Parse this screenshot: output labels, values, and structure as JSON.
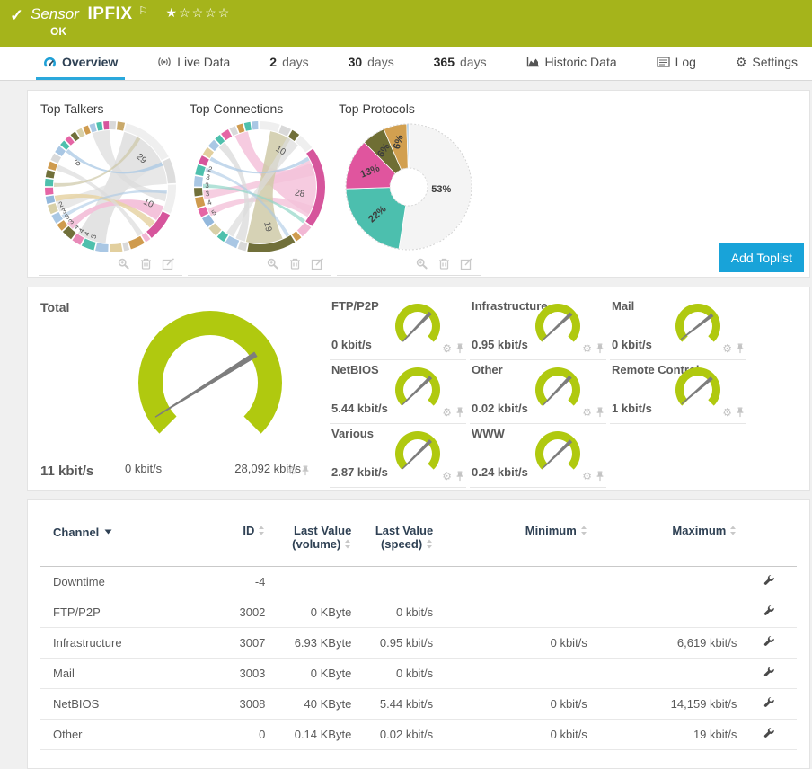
{
  "header": {
    "kind_label": "Sensor",
    "name": "IPFIX",
    "status": "OK",
    "rating_filled": 1,
    "rating_total": 5
  },
  "tabs": [
    {
      "name": "overview",
      "icon": "gauge-icon",
      "label": "Overview",
      "active": true
    },
    {
      "name": "live-data",
      "icon": "live-icon",
      "label": "Live Data"
    },
    {
      "name": "2-days",
      "bold": "2",
      "label": "days"
    },
    {
      "name": "30-days",
      "bold": "30",
      "label": "days"
    },
    {
      "name": "365-days",
      "bold": "365",
      "label": "days"
    },
    {
      "name": "historic-data",
      "icon": "chart-icon",
      "label": "Historic Data"
    },
    {
      "name": "log",
      "icon": "log-icon",
      "label": "Log"
    },
    {
      "name": "settings",
      "icon": "gear-icon",
      "label": "Settings"
    }
  ],
  "toplists": {
    "add_label": "Add Toplist"
  },
  "chart_data": [
    {
      "type": "chord",
      "title": "Top Talkers",
      "visible_values": [
        29,
        10,
        6,
        5,
        4,
        4,
        4,
        3,
        3,
        3,
        2
      ],
      "segments": [
        [
          "#d9d9d9",
          3
        ],
        [
          "#c9a96a",
          4
        ],
        [
          "#efefef",
          30
        ],
        [
          "#dddddd",
          14
        ],
        [
          "#efefef",
          16
        ],
        [
          "#d6559c",
          16
        ],
        [
          "#f2b8d4",
          3
        ],
        [
          "#cf9b4e",
          8
        ],
        [
          "#d9d9d9",
          3
        ],
        [
          "#e2cf9e",
          7
        ],
        [
          "#a9c7e4",
          7
        ],
        [
          "#4ec0ad",
          7
        ],
        [
          "#e88ab8",
          5
        ],
        [
          "#71703a",
          6
        ],
        [
          "#cf9b4e",
          4
        ],
        [
          "#a9c7e4",
          5
        ],
        [
          "#d8d0a8",
          5
        ],
        [
          "#93b8dc",
          4
        ],
        [
          "#e565a5",
          4
        ],
        [
          "#4ec0ad",
          4
        ],
        [
          "#71703a",
          4
        ],
        [
          "#cf9b4e",
          4
        ],
        [
          "#d9d9d9",
          4
        ],
        [
          "#a9c7e4",
          4
        ],
        [
          "#4ec0ad",
          3
        ],
        [
          "#e565a5",
          3
        ],
        [
          "#71703a",
          3
        ],
        [
          "#d8d0a8",
          3
        ],
        [
          "#cf9b4e",
          3
        ],
        [
          "#a9c7e4",
          3
        ],
        [
          "#4ec0ad",
          3
        ],
        [
          "#d6559c",
          3
        ]
      ],
      "ribbons": [
        [
          40,
          26,
          200,
          15,
          "#dcdcdc",
          0.8
        ],
        [
          75,
          12,
          250,
          6,
          "#e2e2e2",
          0.8
        ],
        [
          100,
          5,
          350,
          9,
          "#dcdcdc",
          0.7
        ],
        [
          118,
          8,
          226,
          4,
          "#f3bcd7",
          0.9
        ],
        [
          132,
          4,
          258,
          3,
          "#e6d4a4",
          0.85
        ],
        [
          148,
          3,
          290,
          3,
          "#dcdcdc",
          0.7
        ],
        [
          310,
          2,
          66,
          2,
          "#aac8e4",
          0.75
        ],
        [
          272,
          2,
          30,
          2,
          "#cdc8a6",
          0.7
        ],
        [
          238,
          2,
          95,
          2,
          "#aac8e4",
          0.6
        ]
      ],
      "labels": [
        [
          "6",
          305,
          0.58,
          -40,
          10
        ],
        [
          "29",
          48,
          0.6,
          42,
          10
        ],
        [
          "10",
          117,
          0.63,
          25,
          10
        ],
        [
          "5",
          196,
          0.8,
          -74,
          8
        ],
        [
          "4",
          204,
          0.8,
          -66,
          8
        ],
        [
          "4",
          211,
          0.8,
          -59,
          8
        ],
        [
          "4",
          218,
          0.8,
          -52,
          8
        ],
        [
          "3",
          226,
          0.8,
          -44,
          8
        ],
        [
          "3",
          233,
          0.8,
          -37,
          8
        ],
        [
          "3",
          240,
          0.8,
          -30,
          8
        ],
        [
          "2",
          248,
          0.8,
          -22,
          8
        ]
      ]
    },
    {
      "type": "chord",
      "title": "Top Connections",
      "visible_values": [
        28,
        19,
        10,
        5,
        4,
        3,
        3,
        3,
        2
      ],
      "segments": [
        [
          "#efefef",
          10
        ],
        [
          "#d9d9d9",
          5
        ],
        [
          "#71703a",
          4
        ],
        [
          "#efefef",
          8
        ],
        [
          "#d6559c",
          40
        ],
        [
          "#f2b8d4",
          6
        ],
        [
          "#cf9b4e",
          3
        ],
        [
          "#71703a",
          24
        ],
        [
          "#d9d9d9",
          4
        ],
        [
          "#a9c7e4",
          6
        ],
        [
          "#4ec0ad",
          4
        ],
        [
          "#d8d0a8",
          5
        ],
        [
          "#93b8dc",
          5
        ],
        [
          "#e565a5",
          4
        ],
        [
          "#cf9b4e",
          5
        ],
        [
          "#71703a",
          4
        ],
        [
          "#a9c7e4",
          5
        ],
        [
          "#4ec0ad",
          5
        ],
        [
          "#d6559c",
          4
        ],
        [
          "#e2cf9e",
          4
        ],
        [
          "#a9c7e4",
          4
        ],
        [
          "#4ec0ad",
          3
        ],
        [
          "#e565a5",
          4
        ],
        [
          "#d9d9d9",
          3
        ],
        [
          "#cf9b4e",
          3
        ],
        [
          "#4ec0ad",
          3
        ],
        [
          "#a9c7e4",
          3
        ]
      ],
      "ribbons": [
        [
          92,
          27,
          341,
          7,
          "#f4c2da",
          0.85
        ],
        [
          70,
          8,
          262,
          5,
          "#f4c2da",
          0.8
        ],
        [
          116,
          6,
          243,
          4,
          "#f4c2da",
          0.8
        ],
        [
          175,
          19,
          22,
          11,
          "#cfcaa8",
          0.85
        ],
        [
          200,
          5,
          318,
          4,
          "#dcdcdc",
          0.8
        ],
        [
          36,
          7,
          212,
          4,
          "#dcdcdc",
          0.7
        ],
        [
          300,
          2,
          60,
          2,
          "#aac8e4",
          0.7
        ],
        [
          271,
          2,
          128,
          2,
          "#92d6c8",
          0.7
        ],
        [
          288,
          2,
          150,
          2,
          "#aac8e4",
          0.6
        ]
      ],
      "labels": [
        [
          "10",
          30,
          0.6,
          30,
          10
        ],
        [
          "28",
          103,
          0.62,
          10,
          10
        ],
        [
          "19",
          172,
          0.62,
          78,
          10
        ],
        [
          "5",
          238,
          0.8,
          -32,
          8
        ],
        [
          "4",
          250,
          0.8,
          -20,
          8
        ],
        [
          "3",
          260,
          0.8,
          -10,
          8
        ],
        [
          "3",
          269,
          0.8,
          -1,
          8
        ],
        [
          "3",
          278,
          0.8,
          8,
          8
        ],
        [
          "2",
          287,
          0.8,
          17,
          8
        ]
      ]
    },
    {
      "type": "pie",
      "title": "Top Protocols",
      "slices": [
        {
          "label": "53%",
          "pct": 52.5,
          "color": "#f4f4f4",
          "lr": 0.52,
          "rot": 0
        },
        {
          "label": "22%",
          "pct": 22,
          "color": "#4cbfae",
          "lr": 0.66,
          "rot": -42
        },
        {
          "label": "13%",
          "pct": 13,
          "color": "#e0559e",
          "lr": 0.66,
          "rot": -22
        },
        {
          "label": "6%",
          "pct": 6,
          "color": "#6f6e34",
          "lr": 0.7,
          "rot": -56
        },
        {
          "label": "6%",
          "pct": 6,
          "color": "#d2a050",
          "lr": 0.73,
          "rot": -74
        },
        {
          "label": "",
          "pct": 0.5,
          "color": "#9fc3e0",
          "lr": 0,
          "rot": 0
        }
      ]
    }
  ],
  "gauges": {
    "accent_color": "#b0c90f",
    "total": {
      "label": "Total",
      "value": 11,
      "unit": "kbit/s",
      "value_label": "11 kbit/s",
      "min": 0,
      "max": 28092,
      "min_label": "0 kbit/s",
      "max_label": "28,092 kbit/s",
      "needle_bearing": 58
    },
    "channels": [
      {
        "label": "FTP/P2P",
        "value": 0,
        "value_label": "0 kbit/s",
        "needle_bearing": 44
      },
      {
        "label": "Infrastructure",
        "value": 0.95,
        "value_label": "0.95 kbit/s",
        "needle_bearing": 47
      },
      {
        "label": "Mail",
        "value": 0,
        "value_label": "0 kbit/s",
        "needle_bearing": 52
      },
      {
        "label": "NetBIOS",
        "value": 5.44,
        "value_label": "5.44 kbit/s",
        "needle_bearing": 46
      },
      {
        "label": "Other",
        "value": 0.02,
        "value_label": "0.02 kbit/s",
        "needle_bearing": 44
      },
      {
        "label": "Remote Control",
        "value": 1,
        "value_label": "1 kbit/s",
        "needle_bearing": 49
      },
      {
        "label": "Various",
        "value": 2.87,
        "value_label": "2.87 kbit/s",
        "needle_bearing": 45
      },
      {
        "label": "WWW",
        "value": 0.24,
        "value_label": "0.24 kbit/s",
        "needle_bearing": 46
      }
    ]
  },
  "table": {
    "headers": [
      {
        "label": "Channel",
        "sorted": "desc"
      },
      {
        "label": "ID"
      },
      {
        "label": "Last Value (volume)"
      },
      {
        "label": "Last Value (speed)"
      },
      {
        "label": "Minimum"
      },
      {
        "label": "Maximum"
      }
    ],
    "rows": [
      [
        "Downtime",
        "-4",
        "",
        "",
        "",
        ""
      ],
      [
        "FTP/P2P",
        "3002",
        "0 KByte",
        "0 kbit/s",
        "",
        ""
      ],
      [
        "Infrastructure",
        "3007",
        "6.93 KByte",
        "0.95 kbit/s",
        "0 kbit/s",
        "6,619 kbit/s"
      ],
      [
        "Mail",
        "3003",
        "0 KByte",
        "0 kbit/s",
        "",
        ""
      ],
      [
        "NetBIOS",
        "3008",
        "40 KByte",
        "5.44 kbit/s",
        "0 kbit/s",
        "14,159 kbit/s"
      ],
      [
        "Other",
        "0",
        "0.14 KByte",
        "0.02 kbit/s",
        "0 kbit/s",
        "19 kbit/s"
      ]
    ]
  }
}
